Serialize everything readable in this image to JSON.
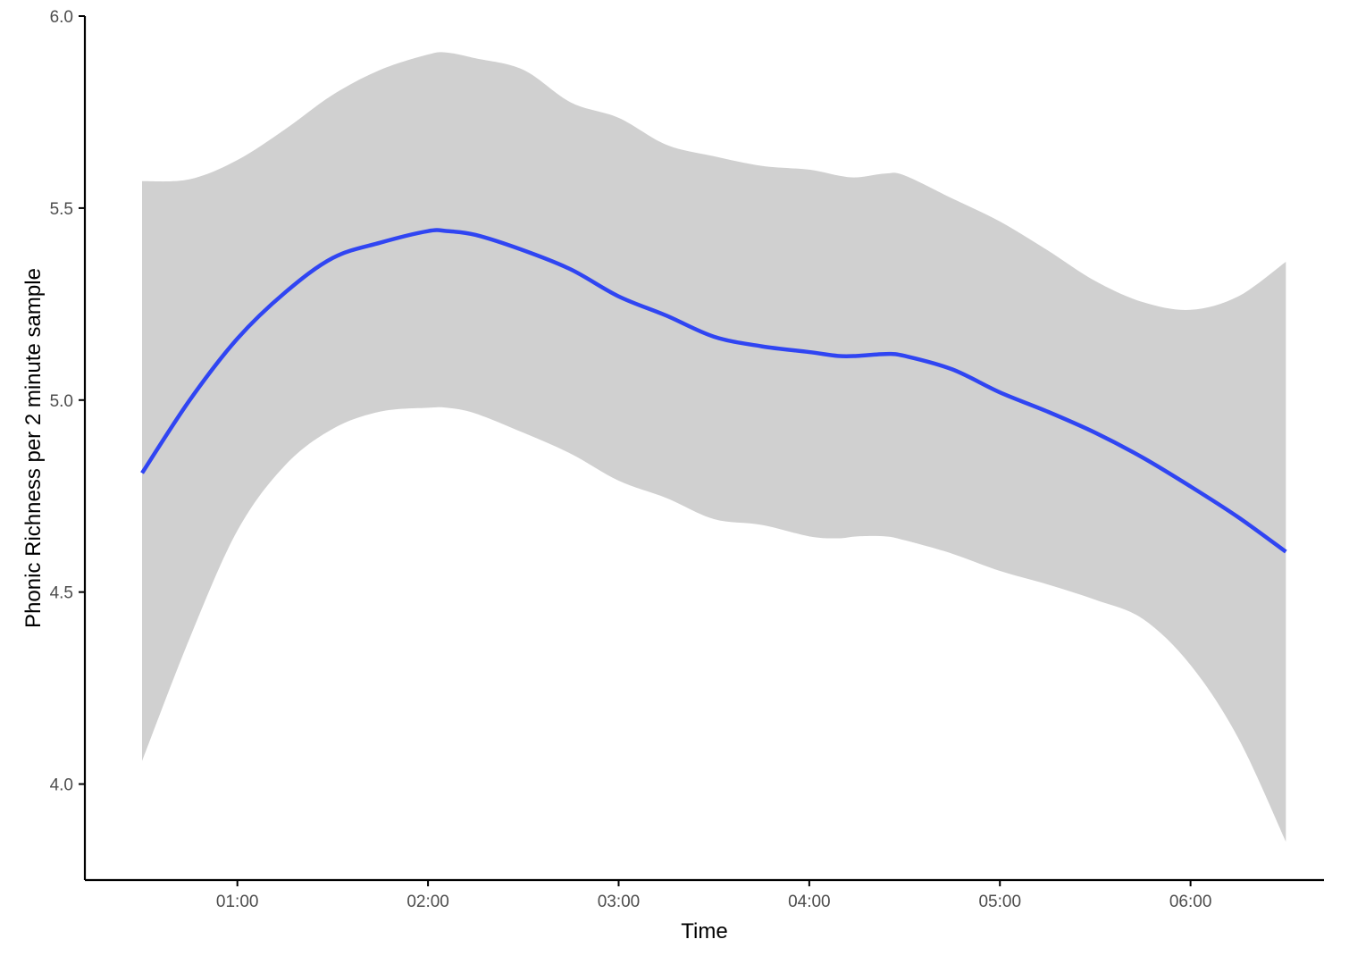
{
  "chart_data": {
    "type": "line",
    "xlabel": "Time",
    "ylabel": "Phonic Richness per 2 minute sample",
    "xlim": [
      0.2,
      6.7
    ],
    "ylim": [
      3.75,
      6.0
    ],
    "x_ticks": [
      {
        "value": 1,
        "label": "01:00"
      },
      {
        "value": 2,
        "label": "02:00"
      },
      {
        "value": 3,
        "label": "03:00"
      },
      {
        "value": 4,
        "label": "04:00"
      },
      {
        "value": 5,
        "label": "05:00"
      },
      {
        "value": 6,
        "label": "06:00"
      }
    ],
    "y_ticks": [
      {
        "value": 4.0,
        "label": "4.0"
      },
      {
        "value": 4.5,
        "label": "4.5"
      },
      {
        "value": 5.0,
        "label": "5.0"
      },
      {
        "value": 5.5,
        "label": "5.5"
      },
      {
        "value": 6.0,
        "label": "6.0"
      }
    ],
    "grid": false,
    "legend": "none",
    "colors": {
      "line": "#3045f2",
      "band": "#d0d0d0",
      "axis": "#000000"
    },
    "series": [
      {
        "x": [
          0.5,
          0.75,
          1.0,
          1.25,
          1.5,
          1.75,
          2.0,
          2.1,
          2.25,
          2.5,
          2.75,
          3.0,
          3.25,
          3.5,
          3.75,
          4.0,
          4.15,
          4.25,
          4.4,
          4.5,
          4.75,
          5.0,
          5.25,
          5.5,
          5.75,
          6.0,
          6.25,
          6.5
        ],
        "y": [
          4.81,
          5.0,
          5.16,
          5.28,
          5.37,
          5.41,
          5.44,
          5.44,
          5.43,
          5.39,
          5.34,
          5.27,
          5.22,
          5.165,
          5.14,
          5.125,
          5.115,
          5.115,
          5.12,
          5.115,
          5.08,
          5.02,
          4.97,
          4.915,
          4.85,
          4.775,
          4.695,
          4.605
        ],
        "lower": [
          4.06,
          4.38,
          4.66,
          4.83,
          4.925,
          4.97,
          4.98,
          4.98,
          4.965,
          4.915,
          4.86,
          4.79,
          4.745,
          4.69,
          4.675,
          4.645,
          4.64,
          4.645,
          4.645,
          4.635,
          4.6,
          4.555,
          4.52,
          4.48,
          4.43,
          4.31,
          4.12,
          3.85
        ],
        "upper": [
          5.57,
          5.575,
          5.625,
          5.705,
          5.795,
          5.86,
          5.9,
          5.905,
          5.89,
          5.86,
          5.775,
          5.735,
          5.665,
          5.635,
          5.61,
          5.6,
          5.585,
          5.58,
          5.59,
          5.585,
          5.525,
          5.465,
          5.39,
          5.31,
          5.255,
          5.235,
          5.27,
          5.36
        ]
      }
    ]
  }
}
